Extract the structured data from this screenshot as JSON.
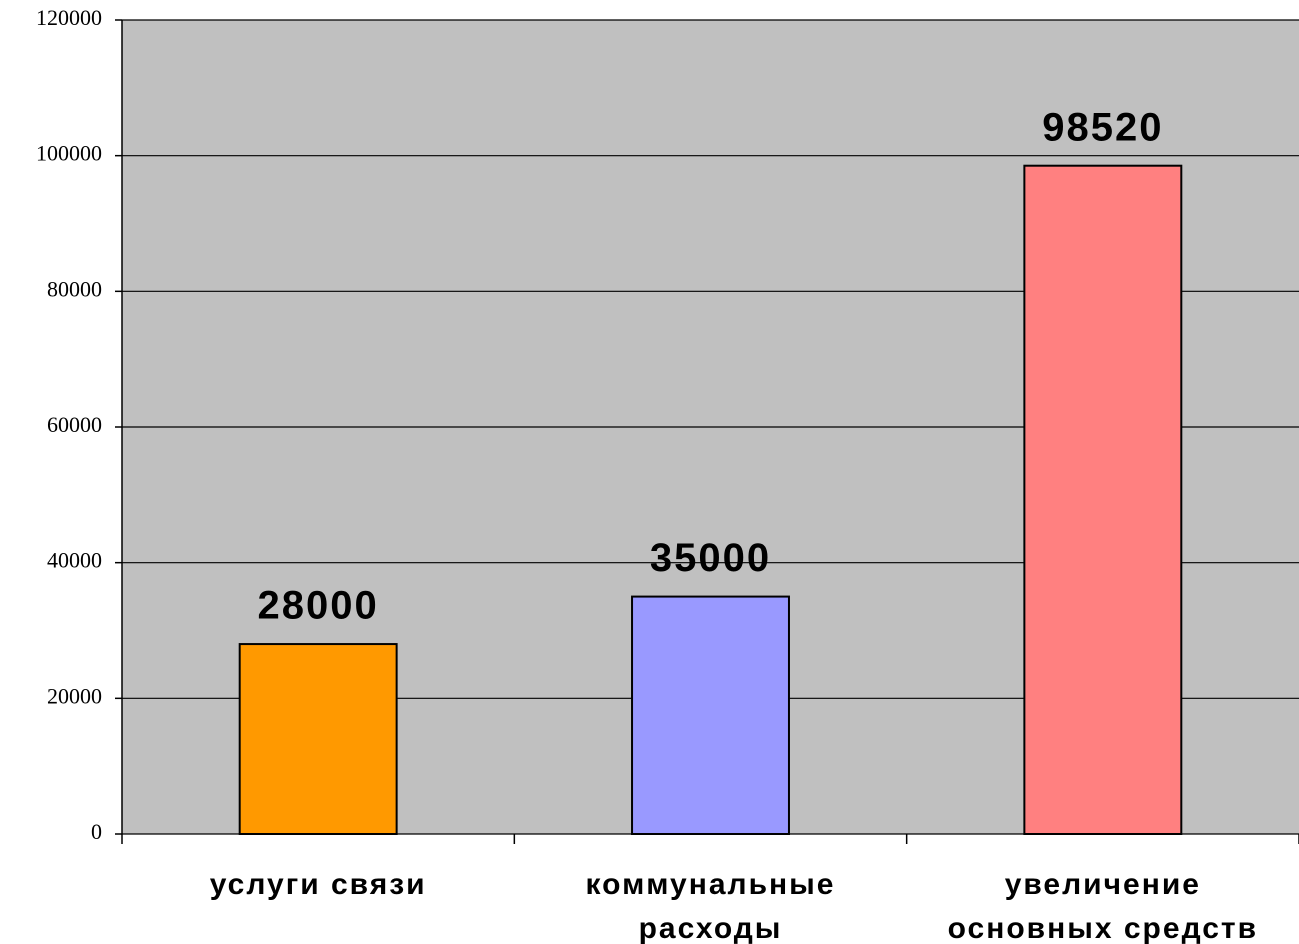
{
  "chart_data": {
    "type": "bar",
    "categories": [
      "услуги связи",
      "коммунальные\nрасходы",
      "увеличение\nосновных средств"
    ],
    "values": [
      28000,
      35000,
      98520
    ],
    "colors": [
      "#ff9900",
      "#9999ff",
      "#ff8080"
    ],
    "ylim": [
      0,
      120000
    ],
    "yticks": [
      0,
      20000,
      40000,
      60000,
      80000,
      100000,
      120000
    ],
    "grid": true
  }
}
